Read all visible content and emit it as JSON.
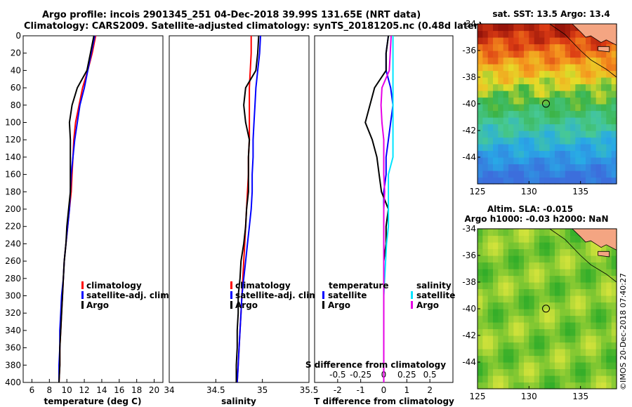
{
  "header": {
    "line1": "Argo profile: incois 2901345_251 04-Dec-2018 39.99S 131.65E (NRT data)",
    "line2": "Climatology: CARS2009. Satellite-adjusted climatology: synTS_20181205.nc (0.48d later)"
  },
  "credit": "©IMOS 20-Dec-2018 07:40:27",
  "colors": {
    "climatology": "#ff0000",
    "satellite": "#0000ff",
    "argo": "#000000",
    "satellite_s": "#00e5ff",
    "argo_s": "#e600e6",
    "land": "#f4a582"
  },
  "chart_data": [
    {
      "type": "line",
      "title": "",
      "xlabel": "temperature (deg C)",
      "ylabel": "",
      "xlim": [
        5,
        21
      ],
      "ylim": [
        0,
        400
      ],
      "x_ticks": [
        "6",
        "8",
        "10",
        "12",
        "14",
        "16",
        "18",
        "20"
      ],
      "y_ticks": [
        "0",
        "20",
        "40",
        "60",
        "80",
        "100",
        "120",
        "140",
        "160",
        "180",
        "200",
        "220",
        "240",
        "260",
        "280",
        "300",
        "320",
        "340",
        "360",
        "380",
        "400"
      ],
      "legend": [
        "climatology",
        "satellite-adj. clim.",
        "Argo"
      ],
      "depth": [
        0,
        20,
        40,
        60,
        80,
        100,
        120,
        140,
        160,
        180,
        200,
        220,
        240,
        260,
        280,
        300,
        320,
        340,
        360,
        380,
        400
      ],
      "series": [
        {
          "name": "climatology",
          "color": "#ff0000",
          "values": [
            13.3,
            12.9,
            12.4,
            11.8,
            11.4,
            11.0,
            10.8,
            10.7,
            10.6,
            10.5,
            10.3,
            10.1,
            9.9,
            9.7,
            9.6,
            9.5,
            9.4,
            9.3,
            9.2,
            9.2,
            9.1
          ]
        },
        {
          "name": "satellite-adj. clim.",
          "color": "#0000ff",
          "values": [
            13.2,
            12.8,
            12.4,
            12.0,
            11.5,
            11.2,
            10.9,
            10.7,
            10.5,
            10.4,
            10.3,
            10.1,
            9.9,
            9.7,
            9.6,
            9.4,
            9.3,
            9.2,
            9.2,
            9.1,
            9.1
          ]
        },
        {
          "name": "Argo",
          "color": "#000000",
          "values": [
            13.1,
            12.7,
            12.3,
            11.2,
            10.6,
            10.3,
            10.4,
            10.4,
            10.4,
            10.4,
            10.2,
            10.0,
            9.9,
            9.7,
            9.6,
            9.5,
            9.4,
            9.3,
            9.2,
            9.2,
            9.1
          ]
        }
      ]
    },
    {
      "type": "line",
      "title": "",
      "xlabel": "salinity",
      "ylabel": "",
      "xlim": [
        34,
        35.5
      ],
      "ylim": [
        0,
        400
      ],
      "x_ticks": [
        "34",
        "34.5",
        "35",
        "35.5"
      ],
      "legend": [
        "climatology",
        "satellite-adj. clim.",
        "Argo"
      ],
      "depth": [
        0,
        20,
        40,
        60,
        80,
        100,
        120,
        140,
        160,
        180,
        200,
        220,
        240,
        260,
        280,
        300,
        320,
        340,
        360,
        380,
        400
      ],
      "series": [
        {
          "name": "climatology",
          "color": "#ff0000",
          "values": [
            34.88,
            34.88,
            34.87,
            34.86,
            34.86,
            34.86,
            34.86,
            34.85,
            34.85,
            34.84,
            34.83,
            34.82,
            34.81,
            34.8,
            34.79,
            34.78,
            34.77,
            34.76,
            34.75,
            34.74,
            34.73
          ]
        },
        {
          "name": "satellite-adj. clim.",
          "color": "#0000ff",
          "values": [
            34.98,
            34.97,
            34.95,
            34.93,
            34.92,
            34.91,
            34.9,
            34.9,
            34.89,
            34.89,
            34.88,
            34.86,
            34.84,
            34.82,
            34.8,
            34.78,
            34.77,
            34.76,
            34.75,
            34.74,
            34.73
          ]
        },
        {
          "name": "Argo",
          "color": "#000000",
          "values": [
            34.96,
            34.95,
            34.93,
            34.82,
            34.8,
            34.82,
            34.86,
            34.85,
            34.85,
            34.85,
            34.83,
            34.82,
            34.8,
            34.77,
            34.76,
            34.74,
            34.74,
            34.73,
            34.73,
            34.72,
            34.72
          ]
        }
      ]
    },
    {
      "type": "line",
      "title": "",
      "xlabel": "T difference from climatology",
      "ylabel": "",
      "xlim": [
        -3,
        3
      ],
      "ylim": [
        0,
        400
      ],
      "x_ticks": [
        "-2",
        "-1",
        "0",
        "1",
        "2"
      ],
      "x2label": "S difference from climatology",
      "x2_ticks": [
        "-0.5",
        "-0.25",
        "0",
        "0.25",
        "0.5"
      ],
      "legend_temperature_title": "temperature",
      "legend_salinity_title": "salinity",
      "legend_temperature": [
        "satellite",
        "Argo"
      ],
      "legend_salinity": [
        "satellite",
        "Argo"
      ],
      "depth": [
        0,
        20,
        40,
        60,
        80,
        100,
        120,
        140,
        160,
        180,
        200,
        220,
        240,
        260,
        280,
        300,
        320,
        340,
        360,
        380,
        400
      ],
      "series": [
        {
          "name": "T satellite",
          "color": "#0000ff",
          "values": [
            0.2,
            0.1,
            0.1,
            0.3,
            0.4,
            0.3,
            0.2,
            0.1,
            0.1,
            0.0,
            0.0,
            0.0,
            0.0,
            0.0,
            0.0,
            0.0,
            0.0,
            0.0,
            0.0,
            0.0,
            0.0
          ]
        },
        {
          "name": "T Argo",
          "color": "#000000",
          "values": [
            0.2,
            0.1,
            0.1,
            -0.4,
            -0.6,
            -0.8,
            -0.5,
            -0.3,
            -0.2,
            -0.1,
            0.2,
            0.1,
            0.1,
            0.0,
            0.0,
            0.0,
            0.0,
            0.0,
            0.0,
            0.0,
            0.0
          ]
        },
        {
          "name": "S satellite",
          "color": "#00e5ff",
          "values": [
            0.1,
            0.1,
            0.1,
            0.1,
            0.1,
            0.1,
            0.1,
            0.1,
            0.05,
            0.05,
            0.05,
            0.05,
            0.03,
            0.02,
            0.01,
            0.0,
            0.0,
            0.0,
            0.0,
            0.0,
            0.0
          ]
        },
        {
          "name": "S Argo",
          "color": "#e600e6",
          "values": [
            0.08,
            0.07,
            0.06,
            -0.02,
            -0.03,
            -0.02,
            0.0,
            0.0,
            0.0,
            0.01,
            0.0,
            0.0,
            0.0,
            0.0,
            0.0,
            0.0,
            0.0,
            0.0,
            0.0,
            0.0,
            0.0
          ]
        }
      ]
    },
    {
      "type": "heatmap",
      "title": "sat. SST: 13.5 Argo: 13.4",
      "x_ticks": [
        "125",
        "130",
        "135"
      ],
      "y_ticks": [
        "-34",
        "-36",
        "-38",
        "-40",
        "-42",
        "-44"
      ],
      "lon_range": [
        125,
        138.5
      ],
      "lat_range": [
        -46,
        -34
      ],
      "argo_position": {
        "lon": 131.65,
        "lat": -39.99
      }
    },
    {
      "type": "heatmap",
      "title_line1": "Altim. SLA: -0.015",
      "title_line2": "Argo h1000: -0.03 h2000: NaN",
      "x_ticks": [
        "125",
        "130",
        "135"
      ],
      "y_ticks": [
        "-34",
        "-36",
        "-38",
        "-40",
        "-42",
        "-44"
      ],
      "lon_range": [
        125,
        138.5
      ],
      "lat_range": [
        -46,
        -34
      ],
      "argo_position": {
        "lon": 131.65,
        "lat": -39.99
      }
    }
  ]
}
